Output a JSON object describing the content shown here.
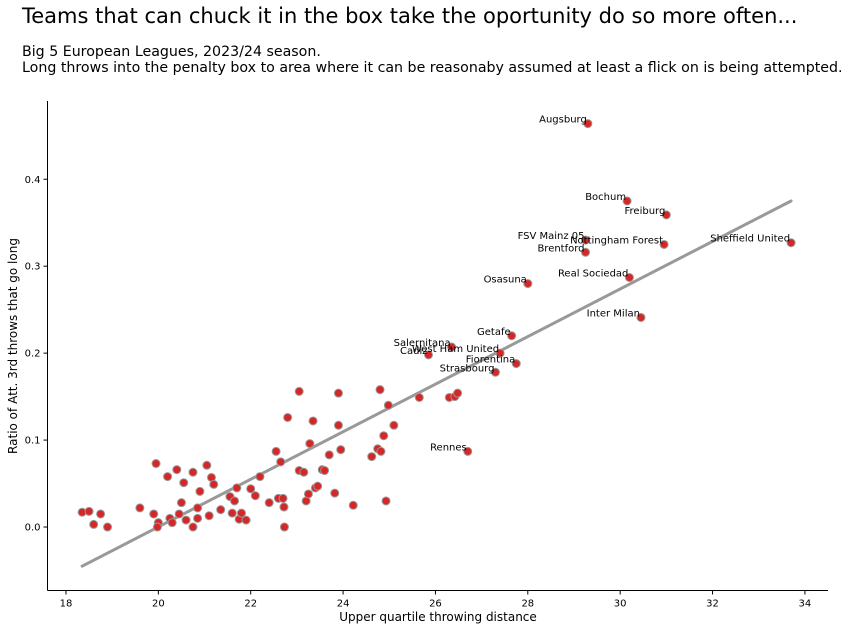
{
  "chart_data": {
    "type": "scatter",
    "title": "Teams that can chuck it in the box take the oportunity do so more often...",
    "subtitle": [
      "Big 5 European Leagues, 2023/24 season.",
      "Long throws into the penalty box to area where it can be reasonaby assumed at least a flick on is being attempted."
    ],
    "xlabel": "Upper quartile throwing distance",
    "ylabel": "Ratio of Att. 3rd throws that go long",
    "xlim": [
      17.6,
      34.5
    ],
    "ylim": [
      -0.073,
      0.49
    ],
    "xticks": [
      18,
      20,
      22,
      24,
      26,
      28,
      30,
      32,
      34
    ],
    "yticks": [
      0.0,
      0.1,
      0.2,
      0.3,
      0.4
    ],
    "xtick_labels": [
      "18",
      "20",
      "22",
      "24",
      "26",
      "28",
      "30",
      "32",
      "34"
    ],
    "ytick_labels": [
      "0.0",
      "0.1",
      "0.2",
      "0.3",
      "0.4"
    ],
    "grid": false,
    "marker_color": "#d62728",
    "marker_edge": "#999999",
    "trend_color": "#999999",
    "trendline": {
      "x": [
        18.35,
        33.7
      ],
      "y": [
        -0.045,
        0.375
      ]
    },
    "labeled_points": [
      {
        "label": "Augsburg",
        "x": 29.3,
        "y": 0.464
      },
      {
        "label": "Bochum",
        "x": 30.15,
        "y": 0.375
      },
      {
        "label": "Freiburg",
        "x": 31.0,
        "y": 0.359
      },
      {
        "label": "FSV Mainz 05",
        "x": 29.25,
        "y": 0.33
      },
      {
        "label": "Nottingham Forest",
        "x": 30.95,
        "y": 0.325
      },
      {
        "label": "Sheffield United",
        "x": 33.7,
        "y": 0.327
      },
      {
        "label": "Brentford",
        "x": 29.25,
        "y": 0.316
      },
      {
        "label": "Real Sociedad",
        "x": 30.2,
        "y": 0.287
      },
      {
        "label": "Osasuna",
        "x": 28.0,
        "y": 0.28
      },
      {
        "label": "Inter Milan",
        "x": 30.45,
        "y": 0.241
      },
      {
        "label": "Getafe",
        "x": 27.65,
        "y": 0.22
      },
      {
        "label": "Salernitana",
        "x": 26.35,
        "y": 0.207
      },
      {
        "label": "Cadiz",
        "x": 25.85,
        "y": 0.198
      },
      {
        "label": "West Ham United",
        "x": 27.4,
        "y": 0.2
      },
      {
        "label": "Fiorentina",
        "x": 27.75,
        "y": 0.188
      },
      {
        "label": "Strasbourg",
        "x": 27.3,
        "y": 0.178
      },
      {
        "label": "Rennes",
        "x": 26.7,
        "y": 0.087
      }
    ],
    "points": [
      {
        "x": 18.35,
        "y": 0.017
      },
      {
        "x": 18.5,
        "y": 0.018
      },
      {
        "x": 18.6,
        "y": 0.003
      },
      {
        "x": 18.75,
        "y": 0.015
      },
      {
        "x": 18.9,
        "y": 0.0
      },
      {
        "x": 19.6,
        "y": 0.022
      },
      {
        "x": 19.9,
        "y": 0.015
      },
      {
        "x": 19.95,
        "y": 0.073
      },
      {
        "x": 20.0,
        "y": 0.005
      },
      {
        "x": 19.98,
        "y": 0.0
      },
      {
        "x": 20.2,
        "y": 0.058
      },
      {
        "x": 20.25,
        "y": 0.01
      },
      {
        "x": 20.3,
        "y": 0.005
      },
      {
        "x": 20.4,
        "y": 0.066
      },
      {
        "x": 20.45,
        "y": 0.015
      },
      {
        "x": 20.5,
        "y": 0.028
      },
      {
        "x": 20.55,
        "y": 0.051
      },
      {
        "x": 20.6,
        "y": 0.008
      },
      {
        "x": 20.75,
        "y": 0.063
      },
      {
        "x": 20.75,
        "y": 0.0
      },
      {
        "x": 20.85,
        "y": 0.01
      },
      {
        "x": 20.85,
        "y": 0.022
      },
      {
        "x": 20.9,
        "y": 0.041
      },
      {
        "x": 21.05,
        "y": 0.071
      },
      {
        "x": 21.1,
        "y": 0.013
      },
      {
        "x": 21.15,
        "y": 0.057
      },
      {
        "x": 21.2,
        "y": 0.049
      },
      {
        "x": 21.35,
        "y": 0.02
      },
      {
        "x": 21.55,
        "y": 0.035
      },
      {
        "x": 21.6,
        "y": 0.016
      },
      {
        "x": 21.65,
        "y": 0.03
      },
      {
        "x": 21.7,
        "y": 0.045
      },
      {
        "x": 21.75,
        "y": 0.009
      },
      {
        "x": 21.8,
        "y": 0.016
      },
      {
        "x": 21.9,
        "y": 0.008
      },
      {
        "x": 22.0,
        "y": 0.044
      },
      {
        "x": 22.1,
        "y": 0.036
      },
      {
        "x": 22.2,
        "y": 0.058
      },
      {
        "x": 22.4,
        "y": 0.028
      },
      {
        "x": 22.55,
        "y": 0.087
      },
      {
        "x": 22.6,
        "y": 0.033
      },
      {
        "x": 22.65,
        "y": 0.075
      },
      {
        "x": 22.7,
        "y": 0.033
      },
      {
        "x": 22.72,
        "y": 0.023
      },
      {
        "x": 22.73,
        "y": 0.0
      },
      {
        "x": 22.8,
        "y": 0.126
      },
      {
        "x": 23.05,
        "y": 0.156
      },
      {
        "x": 23.05,
        "y": 0.065
      },
      {
        "x": 23.15,
        "y": 0.063
      },
      {
        "x": 23.2,
        "y": 0.03
      },
      {
        "x": 23.25,
        "y": 0.038
      },
      {
        "x": 23.28,
        "y": 0.096
      },
      {
        "x": 23.35,
        "y": 0.122
      },
      {
        "x": 23.4,
        "y": 0.045
      },
      {
        "x": 23.45,
        "y": 0.047
      },
      {
        "x": 23.55,
        "y": 0.066
      },
      {
        "x": 23.6,
        "y": 0.065
      },
      {
        "x": 23.7,
        "y": 0.083
      },
      {
        "x": 23.82,
        "y": 0.039
      },
      {
        "x": 23.9,
        "y": 0.154
      },
      {
        "x": 23.9,
        "y": 0.117
      },
      {
        "x": 23.95,
        "y": 0.089
      },
      {
        "x": 24.22,
        "y": 0.025
      },
      {
        "x": 24.62,
        "y": 0.081
      },
      {
        "x": 24.75,
        "y": 0.09
      },
      {
        "x": 24.8,
        "y": 0.158
      },
      {
        "x": 24.82,
        "y": 0.087
      },
      {
        "x": 24.88,
        "y": 0.105
      },
      {
        "x": 24.93,
        "y": 0.03
      },
      {
        "x": 24.98,
        "y": 0.14
      },
      {
        "x": 25.1,
        "y": 0.117
      },
      {
        "x": 25.65,
        "y": 0.149
      },
      {
        "x": 26.3,
        "y": 0.149
      },
      {
        "x": 26.42,
        "y": 0.15
      },
      {
        "x": 26.48,
        "y": 0.154
      }
    ]
  }
}
